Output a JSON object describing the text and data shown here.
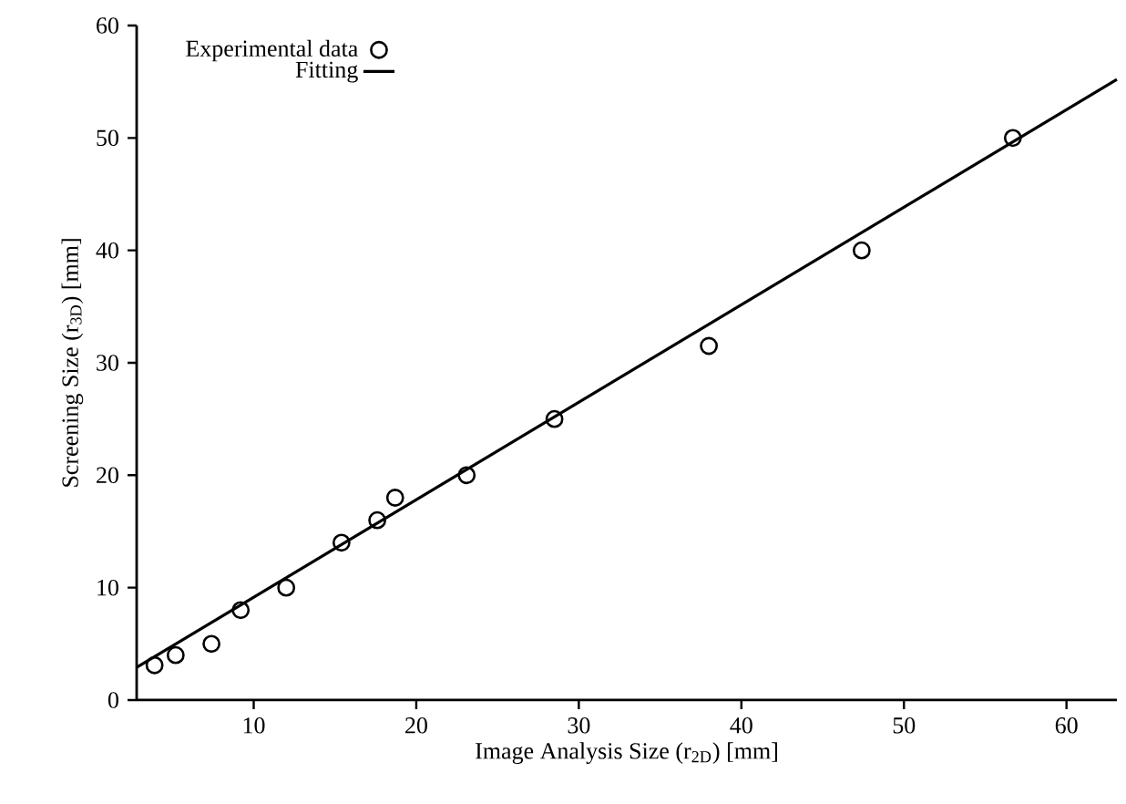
{
  "chart_data": {
    "type": "scatter",
    "xlabel": "Image Analysis Size (r$_{2D}$) [mm]",
    "ylabel": "Screening Size (r$_{3D}$) [mm]",
    "xlim": [
      2.8,
      63.1
    ],
    "ylim": [
      0,
      60
    ],
    "xticks": [
      10,
      20,
      30,
      40,
      50,
      60
    ],
    "yticks": [
      0,
      10,
      20,
      30,
      40,
      50,
      60
    ],
    "legend": "top left",
    "series": [
      {
        "name": "Experimental data",
        "marker": "circle",
        "color": "#000000",
        "x": [
          3.9,
          5.2,
          7.4,
          9.2,
          12.0,
          15.4,
          17.6,
          18.7,
          23.1,
          28.5,
          38.0,
          47.4,
          56.7
        ],
        "values": [
          3.1,
          4.0,
          5.0,
          8.0,
          10.0,
          14.0,
          16.0,
          18.0,
          20.0,
          25.0,
          31.5,
          40.0,
          50.0
        ]
      },
      {
        "name": "Fitting",
        "type": "line",
        "marker": "none",
        "line_style": "solid",
        "color": "#000000",
        "x": [
          2.8,
          63.1
        ],
        "values": [
          2.9,
          55.2
        ]
      }
    ]
  }
}
